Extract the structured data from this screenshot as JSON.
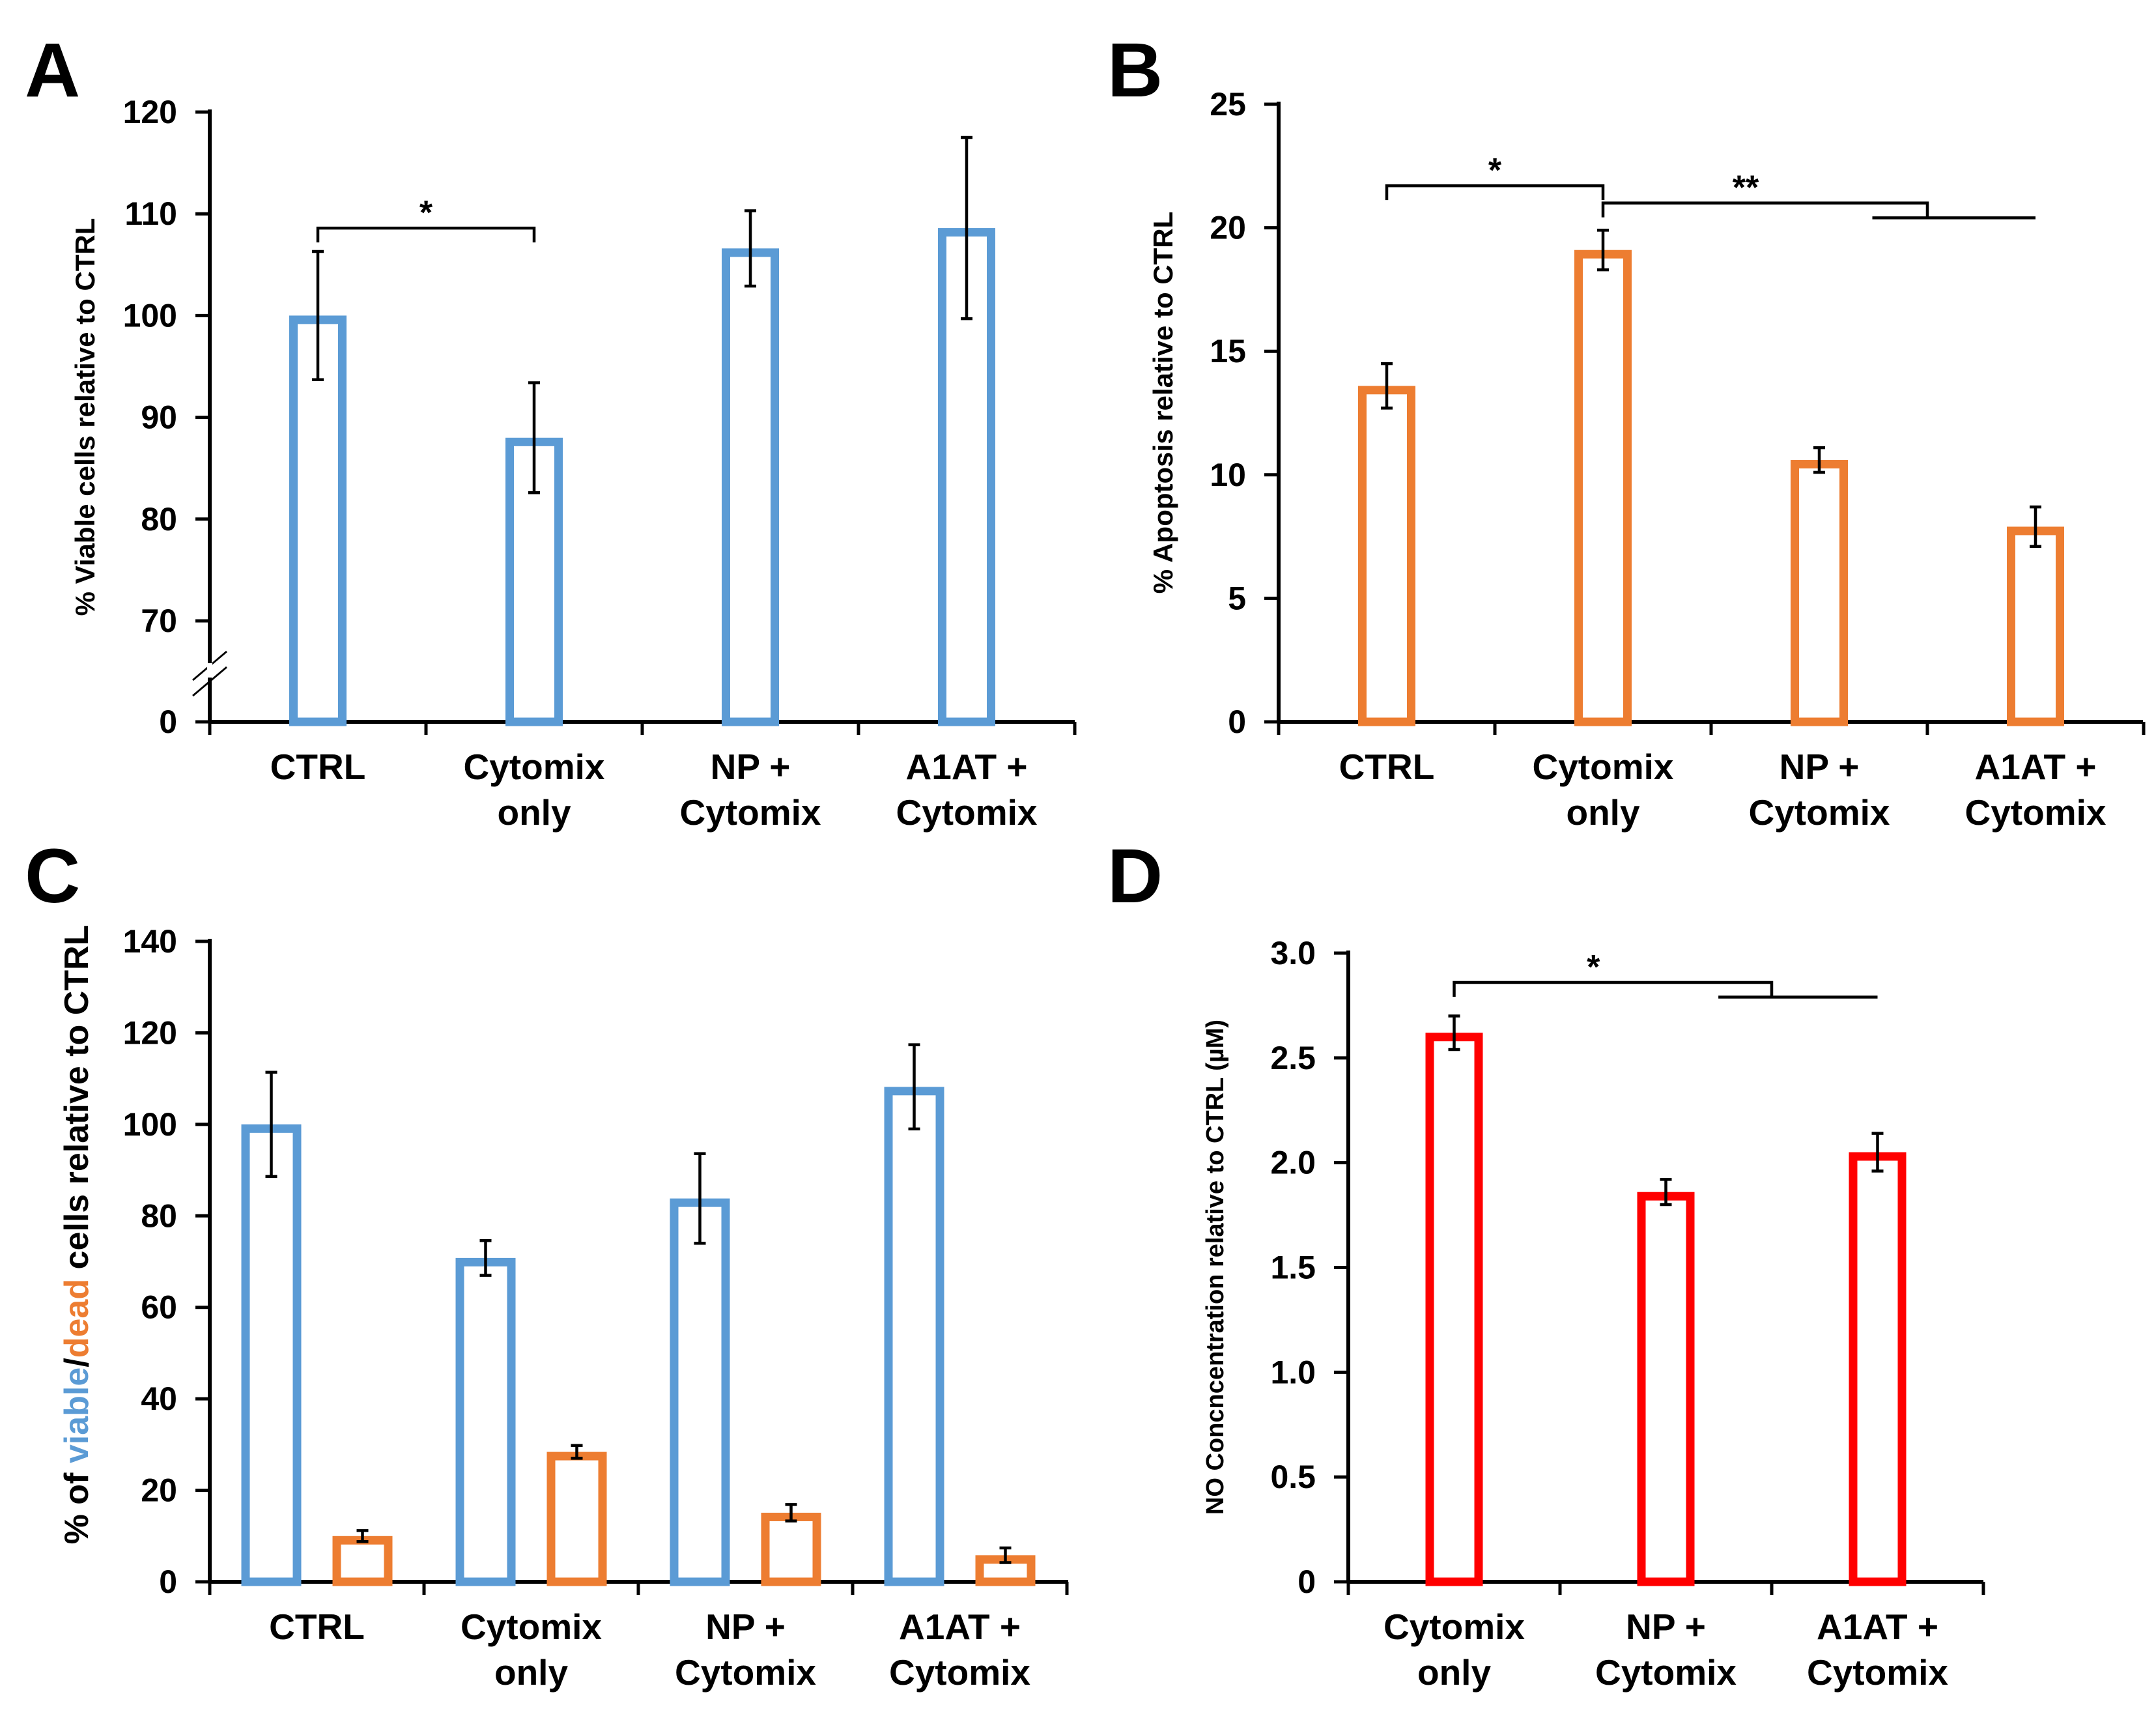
{
  "colors": {
    "blue": "#5b9bd5",
    "orange": "#ed7d31",
    "red": "#ff0000"
  },
  "chart_data": [
    {
      "panel": "A",
      "type": "bar",
      "ylabel": "% Viable cells relative to CTRL",
      "axis_break": true,
      "ticks": [
        "0",
        "70",
        "80",
        "90",
        "100",
        "110",
        "120"
      ],
      "ylim": [
        60,
        120
      ],
      "categories": [
        [
          "CTRL"
        ],
        [
          "Cytomix",
          "only"
        ],
        [
          "NP +",
          "Cytomix"
        ],
        [
          "A1AT +",
          "Cytomix"
        ]
      ],
      "series": [
        {
          "color": "blue",
          "values": [
            100,
            88,
            106.6,
            108.6
          ],
          "errors": [
            6.3,
            5.4,
            3.7,
            8.9
          ]
        }
      ],
      "significance": [
        {
          "label": "*",
          "from": 0,
          "to": 1,
          "y": 108.6
        }
      ]
    },
    {
      "panel": "B",
      "type": "bar",
      "ylabel": "% Apoptosis relative to CTRL",
      "ticks": [
        "0",
        "5",
        "10",
        "15",
        "20",
        "25"
      ],
      "ylim": [
        0,
        25
      ],
      "categories": [
        [
          "CTRL"
        ],
        [
          "Cytomix",
          "only"
        ],
        [
          "NP +",
          "Cytomix"
        ],
        [
          "A1AT +",
          "Cytomix"
        ]
      ],
      "series": [
        {
          "color": "orange",
          "values": [
            13.6,
            19.1,
            10.6,
            7.9
          ],
          "errors": [
            0.9,
            0.8,
            0.5,
            0.8
          ]
        }
      ],
      "significance": [
        {
          "label": "*",
          "from": 0,
          "to": 1,
          "y": 21.7
        },
        {
          "label": "**",
          "from": 1,
          "to": 2.5,
          "y": 21.0,
          "second_to": 3,
          "second_y": 20.4
        }
      ]
    },
    {
      "panel": "C",
      "type": "bar",
      "ylabel": [
        "% of ",
        "viable",
        "/",
        "dead",
        " cells relative to CTRL"
      ],
      "ticks": [
        "0",
        "20",
        "40",
        "60",
        "80",
        "100",
        "120",
        "140"
      ],
      "ylim": [
        0,
        140
      ],
      "categories": [
        [
          "CTRL"
        ],
        [
          "Cytomix",
          "only"
        ],
        [
          "NP +",
          "Cytomix"
        ],
        [
          "A1AT +",
          "Cytomix"
        ]
      ],
      "series": [
        {
          "color": "blue",
          "values": [
            100,
            70.8,
            83.8,
            108.2
          ],
          "errors": [
            11.4,
            3.8,
            9.8,
            9.2
          ]
        },
        {
          "color": "orange",
          "values": [
            10,
            28.4,
            15.1,
            5.8
          ],
          "errors": [
            1.2,
            1.4,
            1.8,
            1.6
          ]
        }
      ]
    },
    {
      "panel": "D",
      "type": "bar",
      "ylabel": "NO Concncentration relative to CTRL (µM)",
      "ticks": [
        "0",
        "0.5",
        "1.0",
        "1.5",
        "2.0",
        "2.5",
        "3.0"
      ],
      "ylim": [
        0,
        3.0
      ],
      "categories": [
        [
          "Cytomix",
          "only"
        ],
        [
          "NP +",
          "Cytomix"
        ],
        [
          "A1AT +",
          "Cytomix"
        ]
      ],
      "series": [
        {
          "color": "red",
          "values": [
            2.62,
            1.86,
            2.05
          ],
          "errors": [
            0.08,
            0.06,
            0.09
          ]
        }
      ],
      "significance": [
        {
          "label": "*",
          "from": 0,
          "to": 1.5,
          "y": 2.86,
          "second_to": 2,
          "second_y": 2.79
        }
      ]
    }
  ]
}
